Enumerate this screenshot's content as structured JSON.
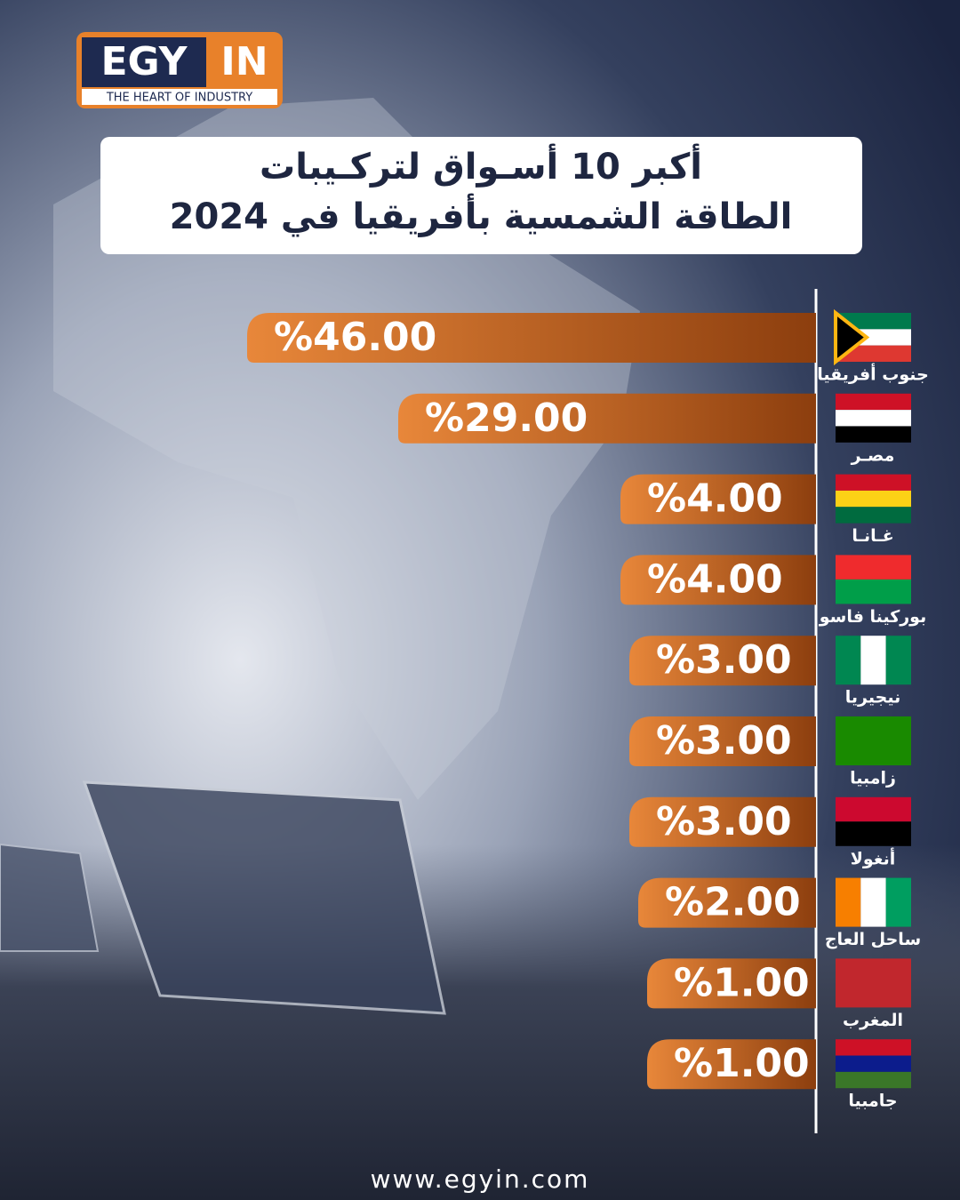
{
  "logo": {
    "left": "EGY",
    "right": "IN",
    "tagline": "THE HEART OF INDUSTRY"
  },
  "chart_data": {
    "type": "bar",
    "title": [
      "أكبر 10 أسـواق لتركـيبات",
      "الطاقة الشمسية بأفريقيا في 2024"
    ],
    "categories": [
      "جنوب أفريقيا",
      "مصـر",
      "غـانـا",
      "بوركينا فاسو",
      "نيجيريا",
      "زامبيا",
      "أنغولا",
      "ساحل العاج",
      "المغرب",
      "جامبيا"
    ],
    "values": [
      46,
      29,
      4,
      4,
      3,
      3,
      3,
      2,
      1,
      1
    ],
    "value_labels": [
      "%46.00",
      "%29.00",
      "%4.00",
      "%4.00",
      "%3.00",
      "%3.00",
      "%3.00",
      "%2.00",
      "%1.00",
      "%1.00"
    ],
    "color": "#e8873a"
  },
  "footer": {
    "website": "www.egyin.com"
  }
}
